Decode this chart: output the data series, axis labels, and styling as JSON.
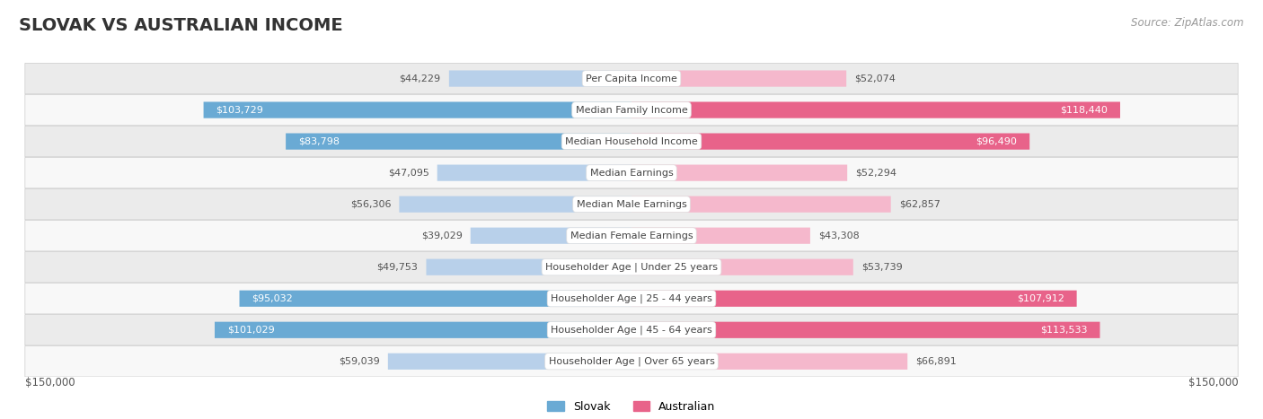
{
  "title": "SLOVAK VS AUSTRALIAN INCOME",
  "source": "Source: ZipAtlas.com",
  "categories": [
    "Per Capita Income",
    "Median Family Income",
    "Median Household Income",
    "Median Earnings",
    "Median Male Earnings",
    "Median Female Earnings",
    "Householder Age | Under 25 years",
    "Householder Age | 25 - 44 years",
    "Householder Age | 45 - 64 years",
    "Householder Age | Over 65 years"
  ],
  "slovak_values": [
    44229,
    103729,
    83798,
    47095,
    56306,
    39029,
    49753,
    95032,
    101029,
    59039
  ],
  "australian_values": [
    52074,
    118440,
    96490,
    52294,
    62857,
    43308,
    53739,
    107912,
    113533,
    66891
  ],
  "slovak_labels": [
    "$44,229",
    "$103,729",
    "$83,798",
    "$47,095",
    "$56,306",
    "$39,029",
    "$49,753",
    "$95,032",
    "$101,029",
    "$59,039"
  ],
  "australian_labels": [
    "$52,074",
    "$118,440",
    "$96,490",
    "$52,294",
    "$62,857",
    "$43,308",
    "$53,739",
    "$107,912",
    "$113,533",
    "$66,891"
  ],
  "slovak_color_light": "#b8d0ea",
  "slovak_color_dark": "#6aaad4",
  "australian_color_light": "#f5b8cc",
  "australian_color_dark": "#e8638a",
  "max_value": 150000,
  "bar_height": 0.52,
  "row_bg_light": "#ebebeb",
  "row_bg_white": "#f8f8f8",
  "label_fontsize": 8.0,
  "title_fontsize": 14,
  "legend_fontsize": 9,
  "sk_dark_threshold": 80000,
  "au_dark_threshold": 90000
}
